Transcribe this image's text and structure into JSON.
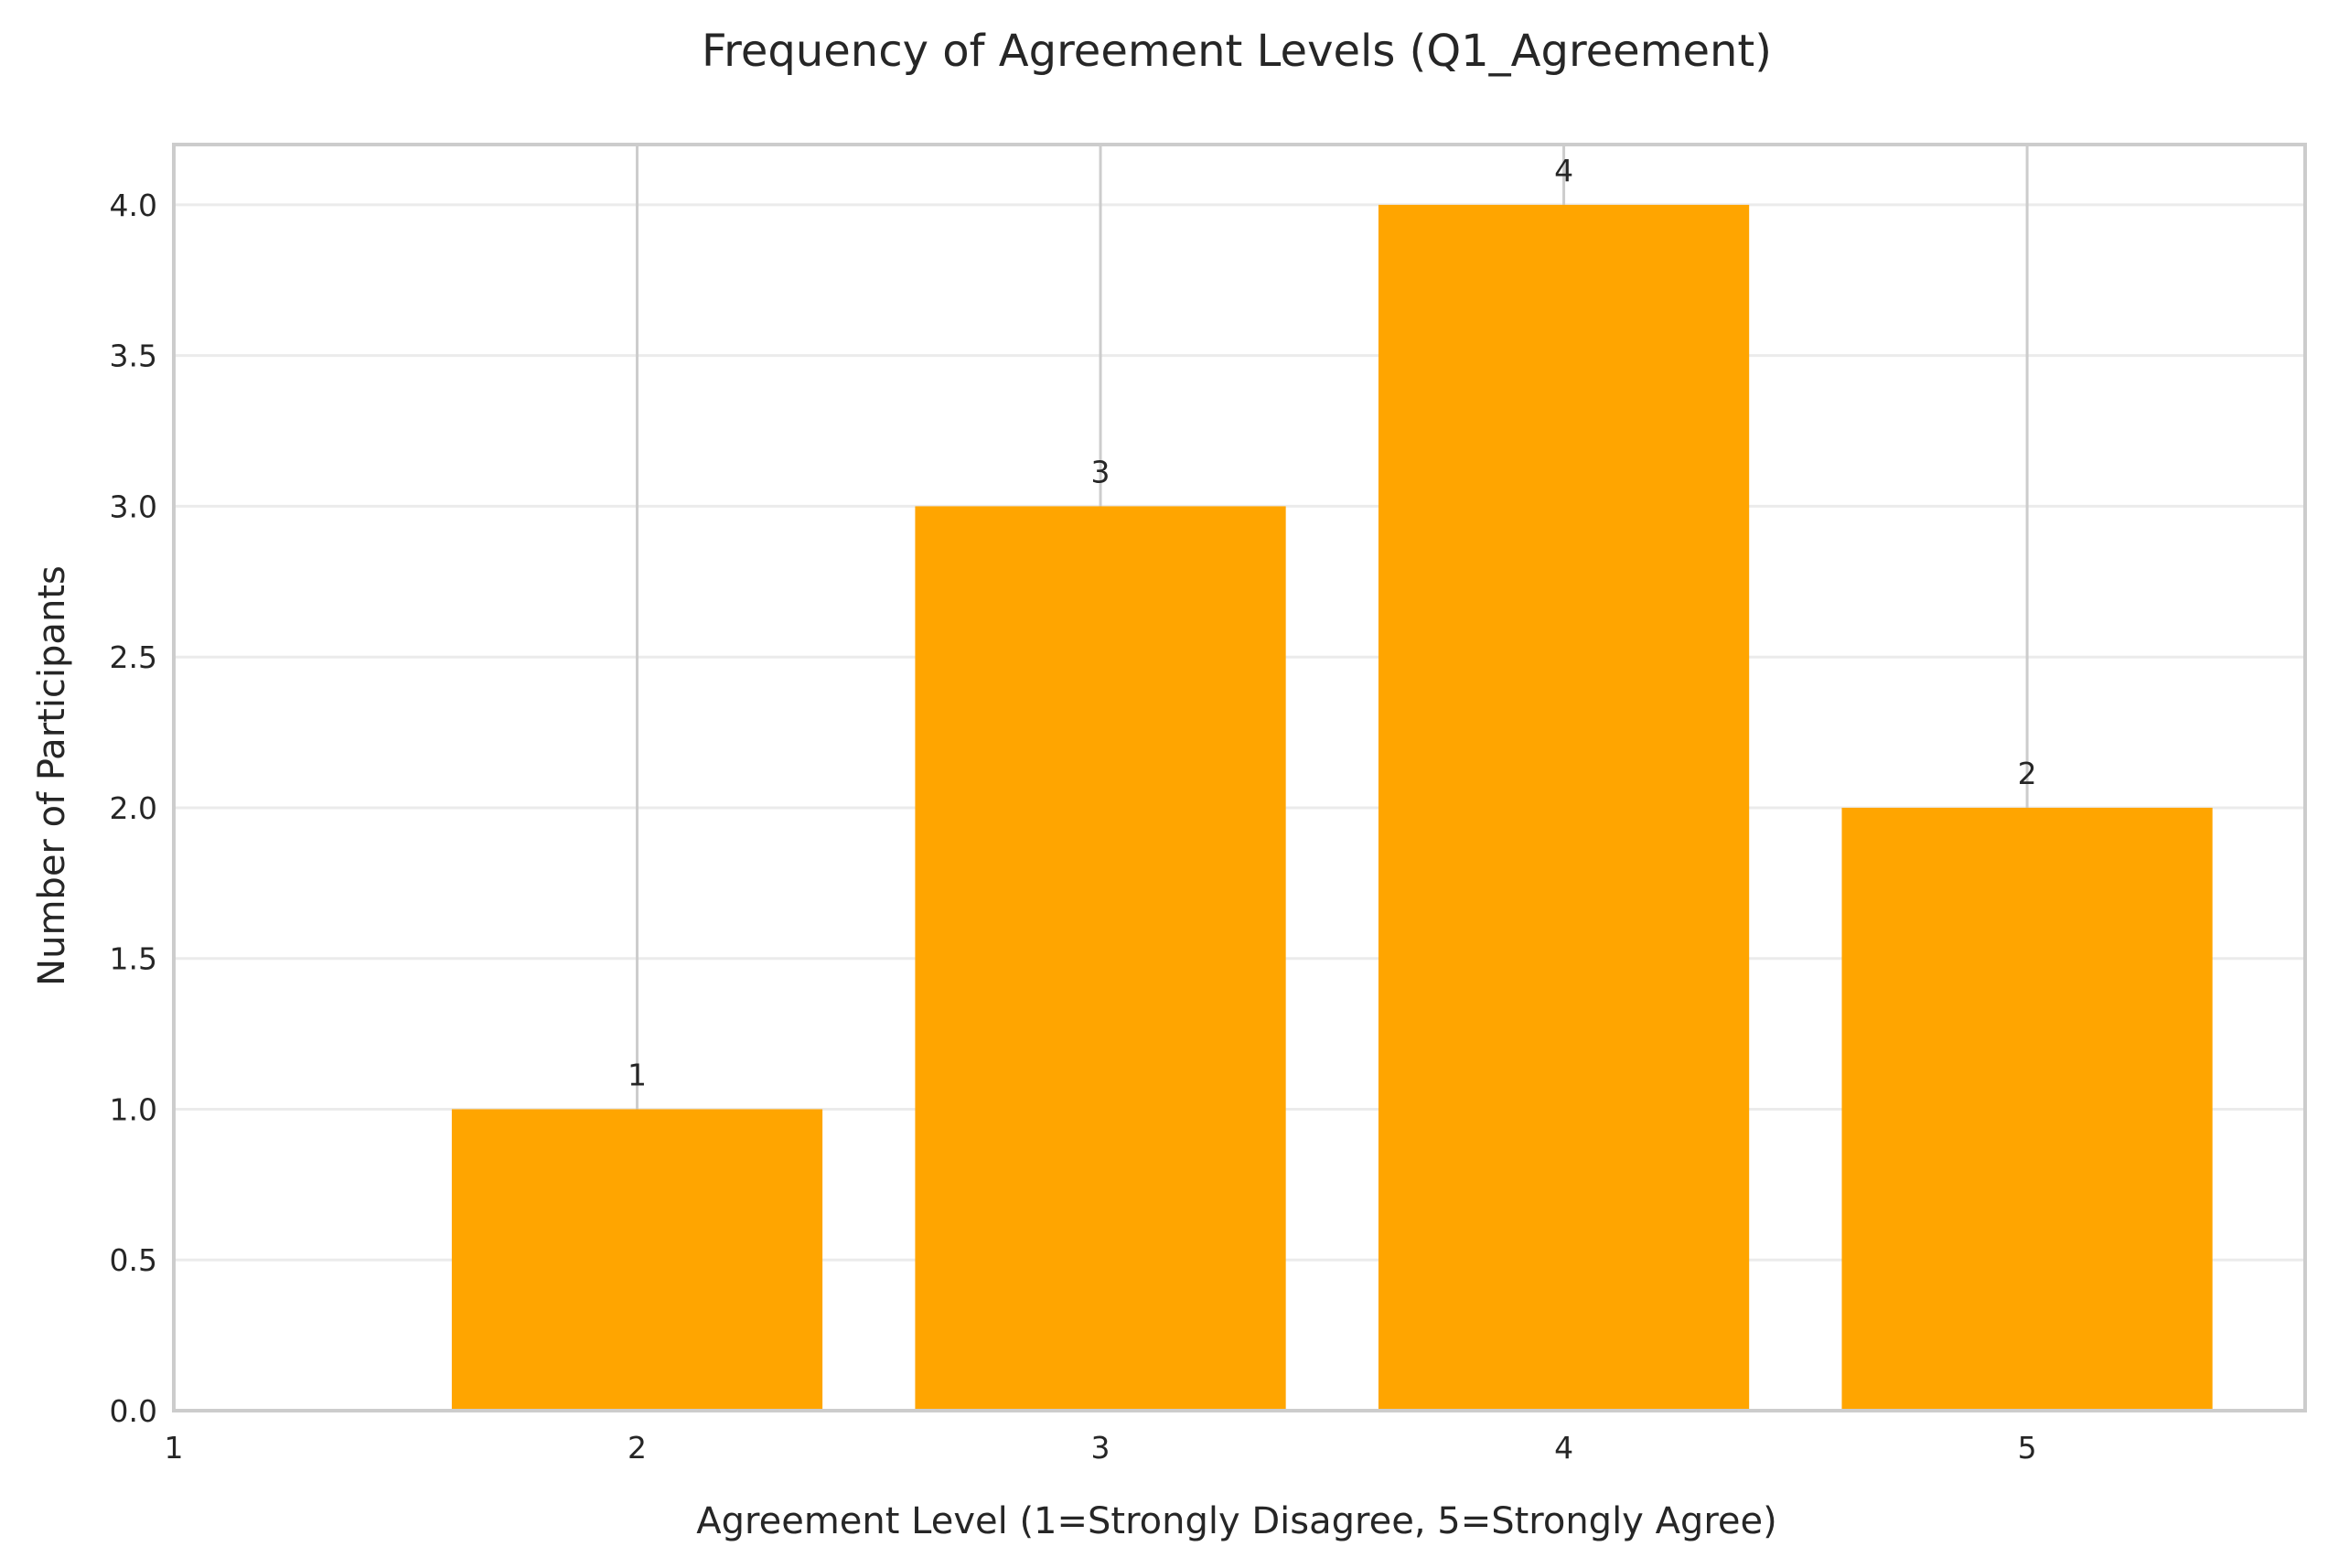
{
  "chart_data": {
    "type": "bar",
    "title": "Frequency of Agreement Levels (Q1_Agreement)",
    "xlabel": "Agreement Level (1=Strongly Disagree, 5=Strongly Agree)",
    "ylabel": "Number of Participants",
    "categories": [
      2,
      3,
      4,
      5
    ],
    "values": [
      1,
      3,
      4,
      2
    ],
    "data_labels": [
      "1",
      "3",
      "4",
      "2"
    ],
    "x_ticks": [
      1,
      2,
      3,
      4,
      5
    ],
    "x_tick_labels": [
      "1",
      "2",
      "3",
      "4",
      "5"
    ],
    "y_ticks": [
      0.0,
      0.5,
      1.0,
      1.5,
      2.0,
      2.5,
      3.0,
      3.5,
      4.0
    ],
    "y_tick_labels": [
      "0.0",
      "0.5",
      "1.0",
      "1.5",
      "2.0",
      "2.5",
      "3.0",
      "3.5",
      "4.0"
    ],
    "xlim": [
      1,
      5.6
    ],
    "ylim": [
      0,
      4.2
    ],
    "bar_width": 0.8,
    "bar_color": "#FFA500",
    "grid": true,
    "legend": "none"
  }
}
